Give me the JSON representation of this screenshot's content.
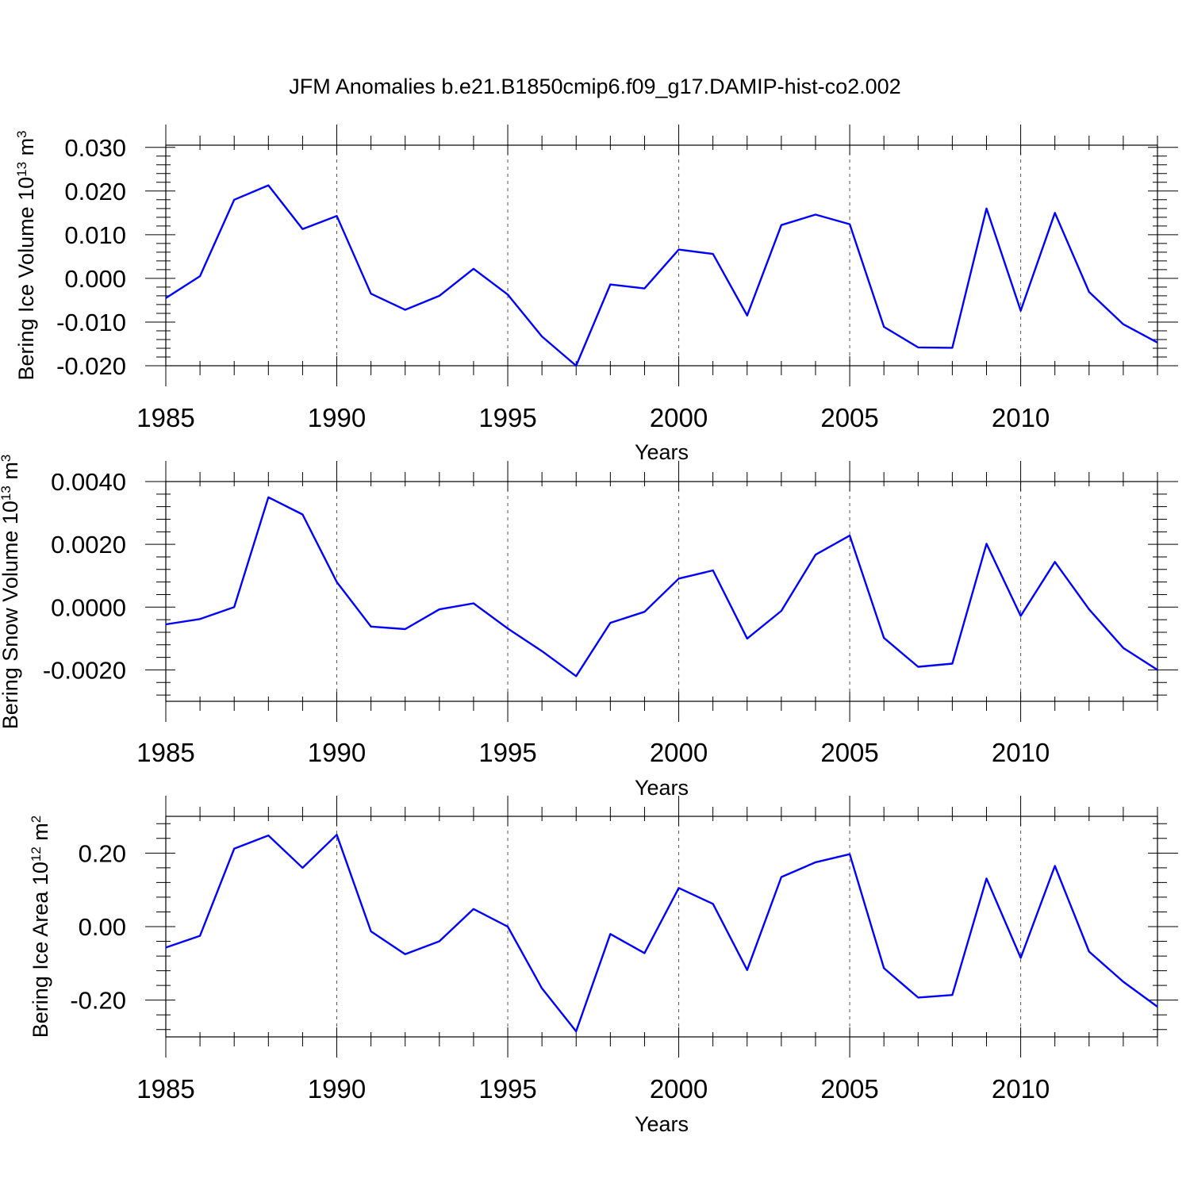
{
  "title": "JFM Anomalies b.e21.B1850cmip6.f09_g17.DAMIP-hist-co2.002",
  "chart_data": [
    {
      "type": "line",
      "ylabel": "Bering Ice Volume 10",
      "ylabel_exp": "13",
      "ylabel_unit": " m",
      "ylabel_unit_exp": "3",
      "xlabel": "Years",
      "xlim": [
        1985,
        2014
      ],
      "ylim": [
        -0.02,
        0.0305
      ],
      "yticks": [
        -0.02,
        -0.01,
        0.0,
        0.01,
        0.02,
        0.03
      ],
      "ytick_labels": [
        "-0.020",
        "-0.010",
        "0.000",
        "0.010",
        "0.020",
        "0.030"
      ],
      "xticks": [
        1985,
        1990,
        1995,
        2000,
        2005,
        2010
      ],
      "xtick_labels": [
        "1985",
        "1990",
        "1995",
        "2000",
        "2005",
        "2010"
      ],
      "color": "#0000ff",
      "x": [
        1985,
        1986,
        1987,
        1988,
        1989,
        1990,
        1991,
        1992,
        1993,
        1994,
        1995,
        1996,
        1997,
        1998,
        1999,
        2000,
        2001,
        2002,
        2003,
        2004,
        2005,
        2006,
        2007,
        2008,
        2009,
        2010,
        2011,
        2012,
        2013,
        2014
      ],
      "values": [
        -0.0045,
        0.0005,
        0.018,
        0.0213,
        0.0113,
        0.0143,
        -0.0035,
        -0.0072,
        -0.004,
        0.0022,
        -0.0037,
        -0.0133,
        -0.02,
        -0.0014,
        -0.0023,
        0.0066,
        0.0056,
        -0.0085,
        0.0122,
        0.0146,
        0.0124,
        -0.0111,
        -0.0158,
        -0.0159,
        0.016,
        -0.0074,
        0.015,
        -0.0031,
        -0.0105,
        -0.0147
      ]
    },
    {
      "type": "line",
      "ylabel": "Bering Snow Volume 10",
      "ylabel_exp": "13",
      "ylabel_unit": " m",
      "ylabel_unit_exp": "3",
      "xlabel": "Years",
      "xlim": [
        1985,
        2014
      ],
      "ylim": [
        -0.003,
        0.004
      ],
      "yticks": [
        -0.002,
        0.0,
        0.002,
        0.004
      ],
      "ytick_labels": [
        "-0.0020",
        "0.0000",
        "0.0020",
        "0.0040"
      ],
      "xticks": [
        1985,
        1990,
        1995,
        2000,
        2005,
        2010
      ],
      "xtick_labels": [
        "1985",
        "1990",
        "1995",
        "2000",
        "2005",
        "2010"
      ],
      "color": "#0000ff",
      "x": [
        1985,
        1986,
        1987,
        1988,
        1989,
        1990,
        1991,
        1992,
        1993,
        1994,
        1995,
        1996,
        1997,
        1998,
        1999,
        2000,
        2001,
        2002,
        2003,
        2004,
        2005,
        2006,
        2007,
        2008,
        2009,
        2010,
        2011,
        2012,
        2013,
        2014
      ],
      "values": [
        -0.00055,
        -0.00038,
        0.0,
        0.0035,
        0.00295,
        0.0008,
        -0.00062,
        -0.0007,
        -7e-05,
        0.00012,
        -0.00068,
        -0.0014,
        -0.0022,
        -0.0005,
        -0.00015,
        0.00091,
        0.00117,
        -0.001,
        -0.00012,
        0.00167,
        0.00228,
        -0.00098,
        -0.0019,
        -0.0018,
        0.00202,
        -0.00028,
        0.00144,
        -7e-05,
        -0.0013,
        -0.002
      ]
    },
    {
      "type": "line",
      "ylabel": "Bering Ice Area 10",
      "ylabel_exp": "12",
      "ylabel_unit": " m",
      "ylabel_unit_exp": "2",
      "xlabel": "Years",
      "xlim": [
        1985,
        2014
      ],
      "ylim": [
        -0.3,
        0.3
      ],
      "yticks": [
        -0.2,
        0.0,
        0.2
      ],
      "ytick_labels": [
        "-0.20",
        "0.00",
        "0.20"
      ],
      "xticks": [
        1985,
        1990,
        1995,
        2000,
        2005,
        2010
      ],
      "xtick_labels": [
        "1985",
        "1990",
        "1995",
        "2000",
        "2005",
        "2010"
      ],
      "color": "#0000ff",
      "x": [
        1985,
        1986,
        1987,
        1988,
        1989,
        1990,
        1991,
        1992,
        1993,
        1994,
        1995,
        1996,
        1997,
        1998,
        1999,
        2000,
        2001,
        2002,
        2003,
        2004,
        2005,
        2006,
        2007,
        2008,
        2009,
        2010,
        2011,
        2012,
        2013,
        2014
      ],
      "values": [
        -0.057,
        -0.025,
        0.212,
        0.248,
        0.16,
        0.25,
        -0.013,
        -0.075,
        -0.04,
        0.048,
        0.0,
        -0.168,
        -0.285,
        -0.02,
        -0.072,
        0.105,
        0.062,
        -0.118,
        0.135,
        0.175,
        0.197,
        -0.113,
        -0.193,
        -0.186,
        0.131,
        -0.085,
        0.165,
        -0.068,
        -0.15,
        -0.218
      ]
    }
  ]
}
